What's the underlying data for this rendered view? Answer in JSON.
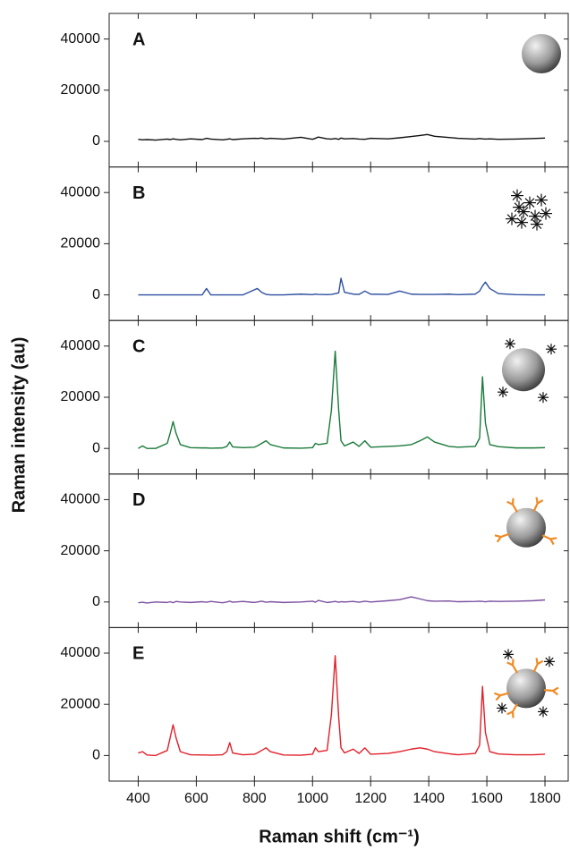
{
  "xlabel": "Raman shift (cm⁻¹)",
  "ylabel": "Raman intensity (au)",
  "chart_data": [
    {
      "type": "line",
      "label": "A",
      "color": "#111111",
      "x": [
        400,
        415,
        430,
        460,
        500,
        510,
        520,
        530,
        545,
        580,
        620,
        635,
        650,
        690,
        705,
        715,
        725,
        760,
        800,
        810,
        825,
        840,
        855,
        900,
        960,
        1000,
        1010,
        1020,
        1050,
        1065,
        1078,
        1090,
        1098,
        1110,
        1140,
        1160,
        1180,
        1200,
        1260,
        1300,
        1340,
        1370,
        1395,
        1420,
        1470,
        1500,
        1560,
        1575,
        1585,
        1595,
        1610,
        1640,
        1700,
        1760,
        1800
      ],
      "values": [
        800,
        600,
        700,
        500,
        900,
        700,
        1000,
        800,
        600,
        1000,
        700,
        1200,
        900,
        600,
        800,
        1000,
        700,
        1000,
        1200,
        1100,
        1300,
        1000,
        1200,
        900,
        1600,
        800,
        1200,
        1700,
        1000,
        900,
        1100,
        800,
        1300,
        1000,
        1100,
        900,
        800,
        1200,
        1000,
        1400,
        1900,
        2300,
        2700,
        2000,
        1500,
        1200,
        900,
        1100,
        1000,
        900,
        1000,
        800,
        900,
        1100,
        1300
      ],
      "xlim": [
        300,
        1880
      ],
      "xticks": [
        400,
        600,
        800,
        1000,
        1200,
        1400,
        1600,
        1800
      ],
      "ylim": [
        -10000,
        50000
      ],
      "yticks": [
        0,
        20000,
        40000
      ]
    },
    {
      "type": "line",
      "label": "B",
      "color": "#2e4fa0",
      "x": [
        400,
        415,
        430,
        460,
        500,
        510,
        520,
        530,
        545,
        580,
        620,
        635,
        650,
        690,
        705,
        715,
        725,
        760,
        800,
        810,
        825,
        840,
        855,
        900,
        960,
        1000,
        1010,
        1020,
        1050,
        1065,
        1078,
        1090,
        1098,
        1110,
        1140,
        1160,
        1180,
        1200,
        1260,
        1300,
        1340,
        1370,
        1395,
        1420,
        1470,
        1500,
        1560,
        1575,
        1585,
        1595,
        1610,
        1640,
        1700,
        1760,
        1800
      ],
      "values": [
        0,
        0,
        0,
        0,
        0,
        0,
        0,
        0,
        0,
        0,
        0,
        2500,
        0,
        0,
        0,
        0,
        0,
        0,
        2000,
        2500,
        1000,
        200,
        0,
        0,
        300,
        100,
        300,
        200,
        100,
        200,
        500,
        800,
        6500,
        1000,
        300,
        200,
        1500,
        300,
        200,
        1500,
        300,
        200,
        200,
        200,
        300,
        100,
        300,
        1500,
        3500,
        5000,
        2500,
        500,
        100,
        0,
        0
      ],
      "xlim": [
        300,
        1880
      ],
      "xticks": [
        400,
        600,
        800,
        1000,
        1200,
        1400,
        1600,
        1800
      ],
      "ylim": [
        -10000,
        50000
      ],
      "yticks": [
        0,
        20000,
        40000
      ]
    },
    {
      "type": "line",
      "label": "C",
      "color": "#1a7a3a",
      "x": [
        400,
        415,
        430,
        460,
        500,
        510,
        520,
        530,
        545,
        580,
        620,
        635,
        650,
        690,
        705,
        715,
        725,
        760,
        800,
        810,
        825,
        840,
        855,
        900,
        960,
        1000,
        1010,
        1020,
        1050,
        1065,
        1078,
        1090,
        1098,
        1110,
        1140,
        1160,
        1180,
        1200,
        1260,
        1300,
        1340,
        1370,
        1395,
        1420,
        1470,
        1500,
        1560,
        1575,
        1585,
        1595,
        1610,
        1640,
        1700,
        1760,
        1800
      ],
      "values": [
        0,
        1000,
        0,
        0,
        2000,
        6000,
        10500,
        6000,
        1500,
        300,
        200,
        200,
        100,
        200,
        800,
        2500,
        600,
        300,
        500,
        1000,
        2000,
        3000,
        1500,
        200,
        100,
        300,
        2000,
        1500,
        2000,
        15000,
        38000,
        15000,
        3000,
        1000,
        2500,
        800,
        3000,
        500,
        800,
        1000,
        1500,
        3000,
        4500,
        2500,
        800,
        500,
        800,
        4000,
        28000,
        10000,
        1500,
        700,
        200,
        200,
        300
      ],
      "xlim": [
        300,
        1880
      ],
      "xticks": [
        400,
        600,
        800,
        1000,
        1200,
        1400,
        1600,
        1800
      ],
      "ylim": [
        -10000,
        50000
      ],
      "yticks": [
        0,
        20000,
        40000
      ]
    },
    {
      "type": "line",
      "label": "D",
      "color": "#7a4fa0",
      "x": [
        400,
        415,
        430,
        460,
        500,
        510,
        520,
        530,
        545,
        580,
        620,
        635,
        650,
        690,
        705,
        715,
        725,
        760,
        800,
        810,
        825,
        840,
        855,
        900,
        960,
        1000,
        1010,
        1020,
        1050,
        1065,
        1078,
        1090,
        1098,
        1110,
        1140,
        1160,
        1180,
        1200,
        1260,
        1300,
        1340,
        1370,
        1395,
        1420,
        1470,
        1500,
        1560,
        1575,
        1585,
        1595,
        1610,
        1640,
        1700,
        1760,
        1800
      ],
      "values": [
        -300,
        -100,
        -400,
        0,
        -200,
        100,
        -300,
        200,
        0,
        -200,
        100,
        -100,
        200,
        -300,
        0,
        300,
        -100,
        200,
        -200,
        0,
        300,
        -100,
        100,
        -200,
        0,
        300,
        -100,
        600,
        -200,
        0,
        200,
        -100,
        100,
        0,
        200,
        -100,
        300,
        0,
        500,
        900,
        2000,
        1200,
        500,
        300,
        400,
        100,
        200,
        300,
        200,
        100,
        300,
        200,
        300,
        500,
        800
      ],
      "xlim": [
        300,
        1880
      ],
      "xticks": [
        400,
        600,
        800,
        1000,
        1200,
        1400,
        1600,
        1800
      ],
      "ylim": [
        -10000,
        50000
      ],
      "yticks": [
        0,
        20000,
        40000
      ]
    },
    {
      "type": "line",
      "label": "E",
      "color": "#e0202a",
      "x": [
        400,
        415,
        430,
        460,
        500,
        510,
        520,
        530,
        545,
        580,
        620,
        635,
        650,
        690,
        705,
        715,
        725,
        760,
        800,
        810,
        825,
        840,
        855,
        900,
        960,
        1000,
        1010,
        1020,
        1050,
        1065,
        1078,
        1090,
        1098,
        1110,
        1140,
        1160,
        1180,
        1200,
        1260,
        1300,
        1340,
        1370,
        1395,
        1420,
        1470,
        1500,
        1560,
        1575,
        1585,
        1595,
        1610,
        1640,
        1700,
        1760,
        1800
      ],
      "values": [
        1000,
        1500,
        200,
        0,
        2000,
        7000,
        12000,
        7000,
        1500,
        300,
        200,
        200,
        100,
        300,
        1500,
        5000,
        1000,
        300,
        500,
        1000,
        2000,
        3000,
        1500,
        200,
        100,
        500,
        3000,
        1500,
        2000,
        16000,
        39000,
        15000,
        3000,
        1000,
        2500,
        800,
        3000,
        500,
        800,
        1500,
        2500,
        3000,
        2500,
        1500,
        700,
        300,
        800,
        4000,
        27000,
        9000,
        1500,
        600,
        300,
        300,
        500
      ],
      "xlim": [
        300,
        1880
      ],
      "xticks": [
        400,
        600,
        800,
        1000,
        1200,
        1400,
        1600,
        1800
      ],
      "ylim": [
        -10000,
        50000
      ],
      "yticks": [
        0,
        20000,
        40000
      ]
    }
  ]
}
